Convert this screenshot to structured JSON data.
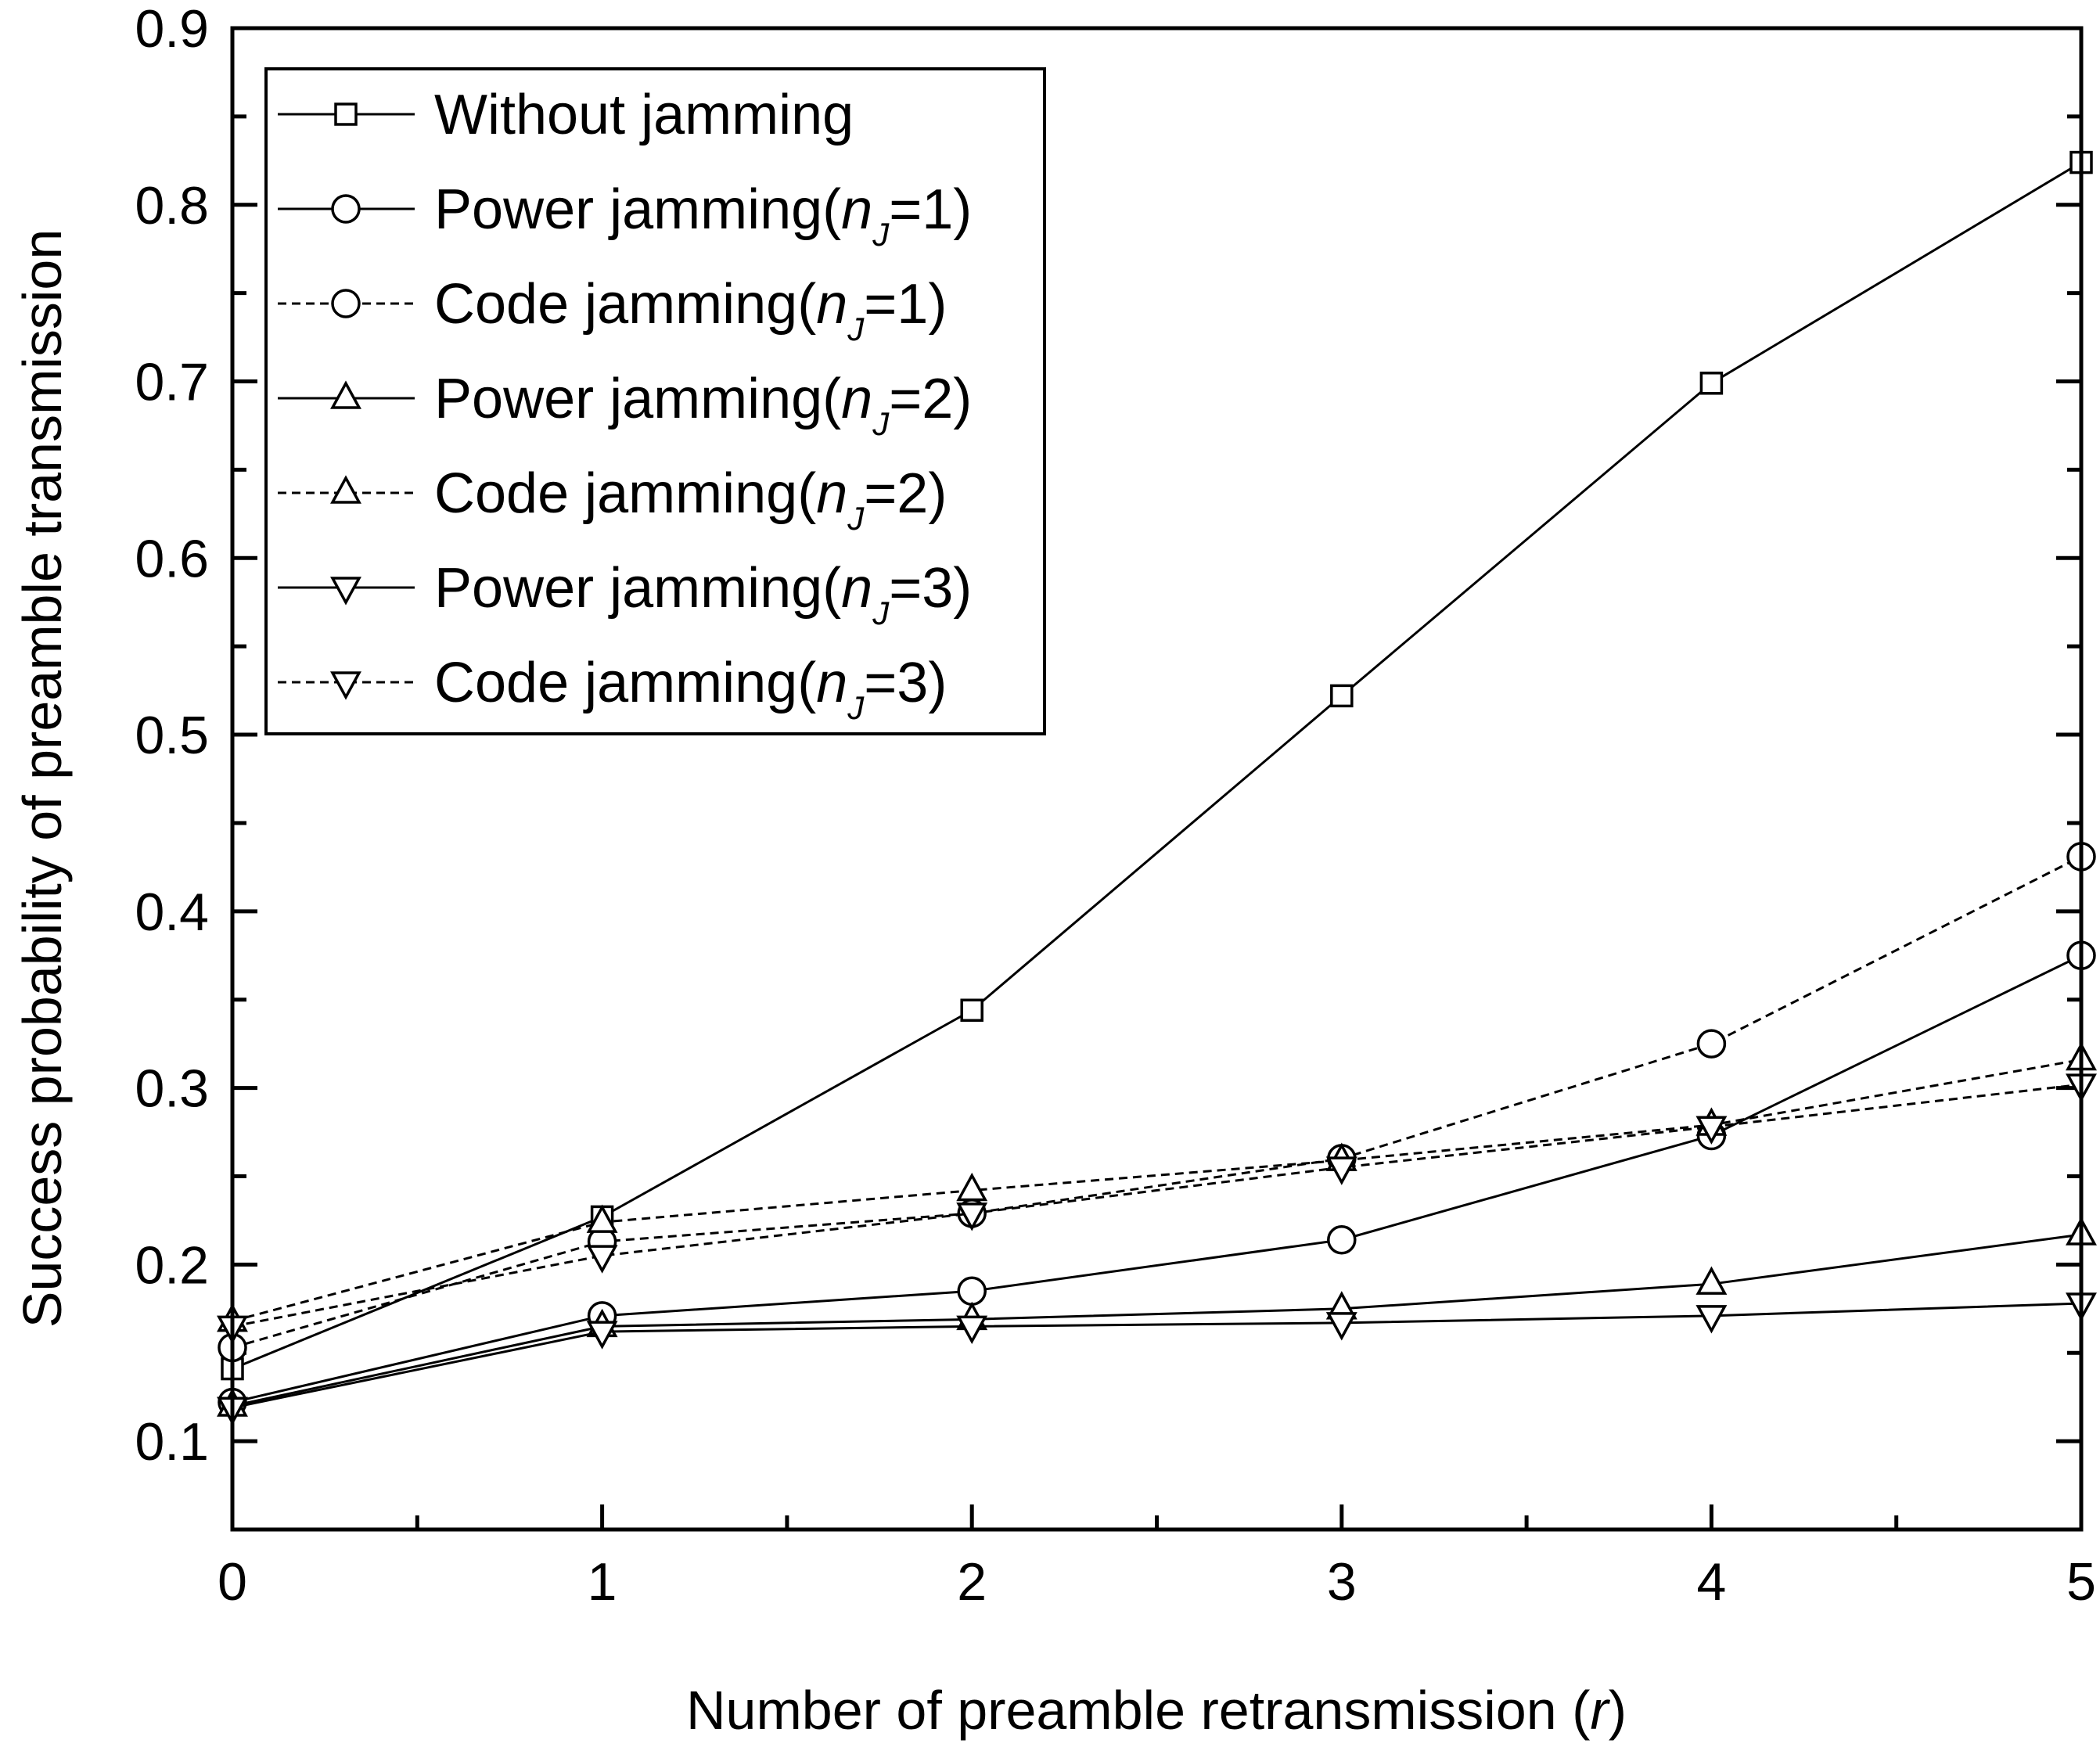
{
  "chart_data": {
    "type": "line",
    "title": "",
    "xlabel": "Number of preamble retransmission (r)",
    "xlabel_parts": {
      "main": "Number of preamble retransmission (",
      "var": "r",
      "close": ")"
    },
    "ylabel": "Success probability of preamble transmission",
    "xlim": [
      0,
      5
    ],
    "ylim": [
      0.05,
      0.9
    ],
    "x": [
      0,
      1,
      2,
      3,
      4,
      5
    ],
    "xticks": [
      "0",
      "1",
      "2",
      "3",
      "4",
      "5"
    ],
    "yticks": [
      "0.1",
      "0.2",
      "0.3",
      "0.4",
      "0.5",
      "0.6",
      "0.7",
      "0.8",
      "0.9"
    ],
    "grid": false,
    "legend_position": "top-left",
    "series": [
      {
        "name": "Without jamming",
        "label_main": "Without jamming",
        "label_var": "",
        "label_eq": "",
        "marker": "square",
        "dash": "solid",
        "values": [
          0.141,
          0.227,
          0.344,
          0.522,
          0.699,
          0.824
        ]
      },
      {
        "name": "Power jamming(nJ=1)",
        "label_main": "Power jamming(",
        "label_var": "n",
        "label_sub": "J",
        "label_eq": "=1)",
        "marker": "circle",
        "dash": "solid",
        "values": [
          0.122,
          0.171,
          0.185,
          0.214,
          0.273,
          0.375
        ]
      },
      {
        "name": "Code jamming(nJ=1)",
        "label_main": "Code jamming(",
        "label_var": "n",
        "label_sub": "J",
        "label_eq": "=1)",
        "marker": "circle",
        "dash": "dashed",
        "values": [
          0.153,
          0.213,
          0.229,
          0.26,
          0.325,
          0.431
        ]
      },
      {
        "name": "Power jamming(nJ=2)",
        "label_main": "Power jamming(",
        "label_var": "n",
        "label_sub": "J",
        "label_eq": "=2)",
        "marker": "triangle-up",
        "dash": "solid",
        "values": [
          0.12,
          0.165,
          0.169,
          0.175,
          0.189,
          0.217
        ]
      },
      {
        "name": "Code jamming(nJ=2)",
        "label_main": "Code jamming(",
        "label_var": "n",
        "label_sub": "J",
        "label_eq": "=2)",
        "marker": "triangle-up",
        "dash": "dashed",
        "values": [
          0.168,
          0.224,
          0.242,
          0.259,
          0.279,
          0.316
        ]
      },
      {
        "name": "Power jamming(nJ=3)",
        "label_main": "Power jamming(",
        "label_var": "n",
        "label_sub": "J",
        "label_eq": "=3)",
        "marker": "triangle-down",
        "dash": "solid",
        "values": [
          0.119,
          0.162,
          0.165,
          0.167,
          0.171,
          0.178
        ]
      },
      {
        "name": "Code jamming(nJ=3)",
        "label_main": "Code jamming(",
        "label_var": "n",
        "label_sub": "J",
        "label_eq": "=3)",
        "marker": "triangle-down",
        "dash": "dashed",
        "values": [
          0.165,
          0.205,
          0.229,
          0.255,
          0.278,
          0.302
        ]
      }
    ]
  }
}
